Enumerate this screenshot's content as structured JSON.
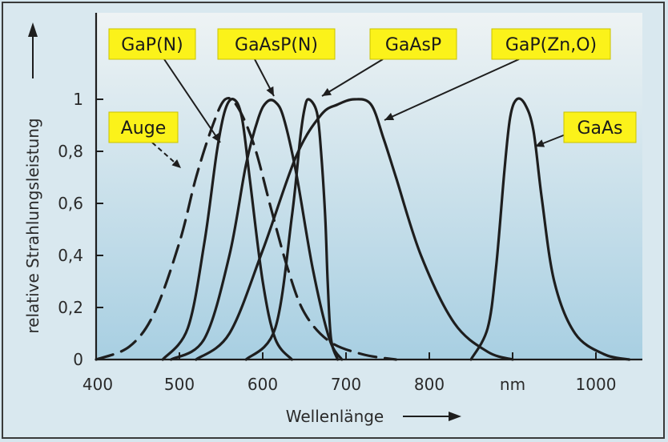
{
  "chart_data": {
    "type": "line",
    "xlabel": "Wellenlänge",
    "ylabel": "relative Strahlungsleistung",
    "xlim": [
      400,
      1050
    ],
    "ylim": [
      0,
      1.05
    ],
    "x_ticks": [
      "400",
      "500",
      "600",
      "700",
      "800",
      "nm",
      "1000"
    ],
    "y_ticks": [
      "0",
      "0,2",
      "0,4",
      "0,6",
      "0,8",
      "1"
    ],
    "series": [
      {
        "name": "Auge",
        "style": "dashed",
        "x": [
          400,
          440,
          470,
          500,
          520,
          540,
          555,
          570,
          590,
          610,
          630,
          650,
          680,
          720,
          760
        ],
        "y": [
          0,
          0.05,
          0.18,
          0.45,
          0.7,
          0.9,
          1.0,
          0.97,
          0.82,
          0.58,
          0.35,
          0.18,
          0.07,
          0.02,
          0
        ]
      },
      {
        "name": "GaP(N)",
        "style": "solid",
        "x": [
          480,
          510,
          530,
          545,
          555,
          565,
          575,
          585,
          600,
          615,
          635
        ],
        "y": [
          0,
          0.12,
          0.45,
          0.8,
          0.96,
          1.0,
          0.93,
          0.68,
          0.3,
          0.08,
          0
        ]
      },
      {
        "name": "GaAsP(N)",
        "style": "solid",
        "x": [
          490,
          530,
          560,
          580,
          595,
          605,
          615,
          625,
          640,
          660,
          680,
          695
        ],
        "y": [
          0,
          0.08,
          0.4,
          0.75,
          0.93,
          0.99,
          0.99,
          0.93,
          0.72,
          0.35,
          0.08,
          0
        ]
      },
      {
        "name": "GaAsP",
        "style": "solid",
        "x": [
          580,
          615,
          635,
          645,
          650,
          655,
          665,
          670,
          675,
          678,
          682,
          690
        ],
        "y": [
          0,
          0.12,
          0.55,
          0.85,
          0.96,
          1.0,
          0.95,
          0.8,
          0.55,
          0.3,
          0.08,
          0
        ]
      },
      {
        "name": "GaP(Zn,O)",
        "style": "solid",
        "x": [
          520,
          560,
          600,
          640,
          670,
          690,
          710,
          730,
          745,
          760,
          790,
          830,
          870,
          900
        ],
        "y": [
          0,
          0.1,
          0.42,
          0.78,
          0.94,
          0.98,
          1.0,
          0.98,
          0.85,
          0.7,
          0.4,
          0.14,
          0.03,
          0
        ]
      },
      {
        "name": "GaAs",
        "style": "solid",
        "x": [
          850,
          870,
          880,
          890,
          897,
          905,
          915,
          925,
          935,
          950,
          975,
          1010,
          1040
        ],
        "y": [
          0,
          0.12,
          0.35,
          0.72,
          0.93,
          1.0,
          0.98,
          0.88,
          0.62,
          0.3,
          0.1,
          0.02,
          0
        ]
      }
    ],
    "labels": [
      "GaP(N)",
      "GaAsP(N)",
      "GaAsP",
      "GaP(Zn,O)",
      "Auge",
      "GaAs"
    ],
    "legend": "none",
    "grid": false
  }
}
